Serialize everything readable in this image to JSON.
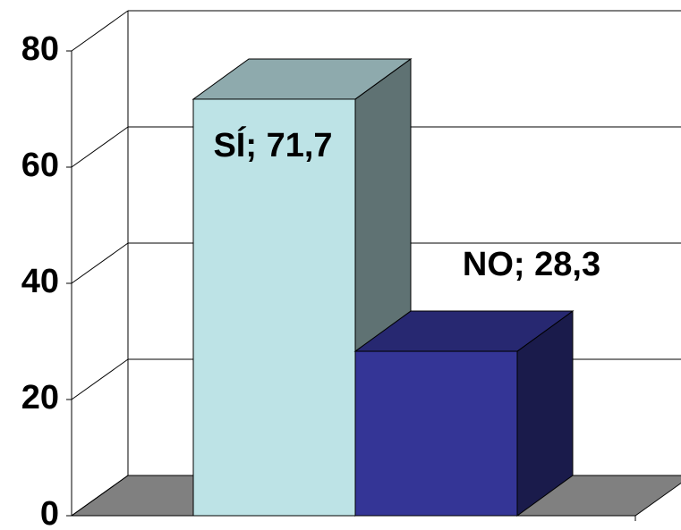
{
  "chart_data": {
    "type": "bar3d",
    "values": [
      71.7,
      28.3
    ],
    "value_labels": [
      "SÍ; 71,7",
      "NO; 28,3"
    ],
    "colors": [
      "#bde3e6",
      "#343596"
    ],
    "ylim": [
      0,
      80
    ],
    "yticks": [
      0,
      20,
      40,
      60,
      80
    ],
    "grid": true
  }
}
